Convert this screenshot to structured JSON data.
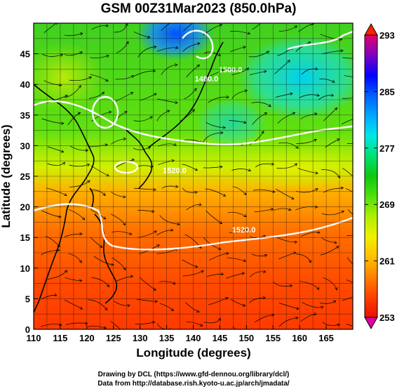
{
  "title": "GSM 00Z31Mar2023 (850.0hPa)",
  "map": {
    "xlabel": "Longitude (degrees)",
    "ylabel": "Latitude (degrees)",
    "xlim": [
      110,
      170
    ],
    "ylim": [
      0,
      50
    ],
    "x_ticks": [
      "110",
      "115",
      "120",
      "125",
      "130",
      "135",
      "140",
      "145",
      "150",
      "155",
      "160",
      "165"
    ],
    "y_ticks": [
      "0",
      "5",
      "10",
      "15",
      "20",
      "25",
      "30",
      "35",
      "40",
      "45"
    ],
    "x_tick_values": [
      110,
      115,
      120,
      125,
      130,
      135,
      140,
      145,
      150,
      155,
      160,
      165
    ],
    "y_tick_values": [
      0,
      5,
      10,
      15,
      20,
      25,
      30,
      35,
      40,
      45
    ],
    "grid": true,
    "field": "temperature (shaded) with streamlines and white height contours",
    "contour_labels": [
      {
        "text": "1480.0",
        "lon": 142.5,
        "lat": 40.5
      },
      {
        "text": "1500.0",
        "lon": 147.0,
        "lat": 42.0
      },
      {
        "text": "1520.0",
        "lon": 136.5,
        "lat": 25.5
      },
      {
        "text": "1520.0",
        "lon": 149.5,
        "lat": 15.8
      }
    ]
  },
  "colorbar": {
    "min": 253,
    "max": 293,
    "labels": [
      "293",
      "285",
      "277",
      "269",
      "261",
      "253"
    ],
    "label_values": [
      293,
      285,
      277,
      269,
      261,
      253
    ],
    "colors": [
      "#e00070",
      "#8000c0",
      "#0000ff",
      "#0060ff",
      "#00a8ff",
      "#00e8e8",
      "#00e070",
      "#10c810",
      "#50e010",
      "#b0f000",
      "#f0f000",
      "#ffc000",
      "#ff8000",
      "#ff4000",
      "#e81000"
    ]
  },
  "credits": [
    "Drawing by DCL (https://www.gfd-dennou.org/library/dcl/)",
    "Data from http://database.rish.kyoto-u.ac.jp/arch/jmadata/"
  ]
}
